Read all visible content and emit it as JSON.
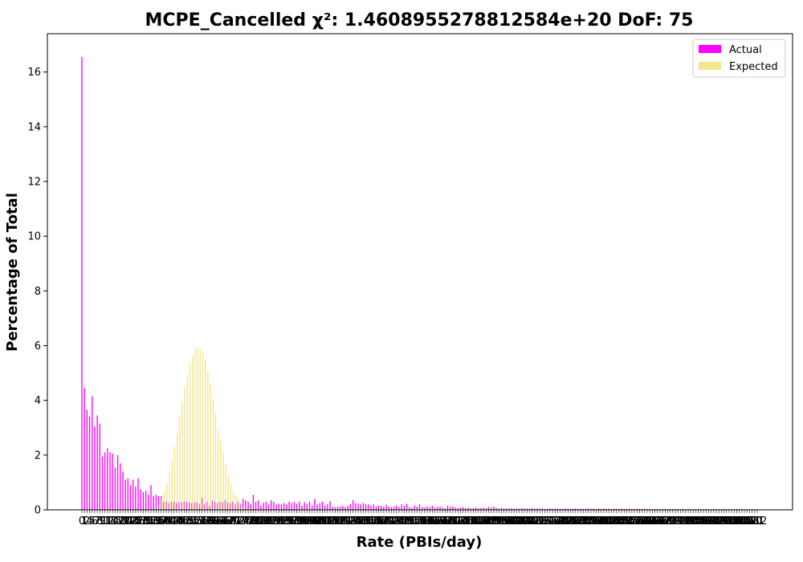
{
  "chart_data": {
    "type": "bar",
    "title": "MCPE_Cancelled χ²: 1.4608955278812584e+20 DoF: 75",
    "xlabel": "Rate (PBIs/day)",
    "ylabel": "Percentage of Total",
    "ylim": [
      0,
      17.4
    ],
    "yticks": [
      0,
      2,
      4,
      6,
      8,
      10,
      12,
      14,
      16
    ],
    "x_first": 0,
    "x_last": 312,
    "first_tick_label": "0",
    "last_tick_label": "312",
    "legend_position": "top-right",
    "grid": false,
    "series": [
      {
        "name": "Actual",
        "color": "#ff00ff",
        "values": [
          16.55,
          4.45,
          3.65,
          3.4,
          4.15,
          3.05,
          3.45,
          3.15,
          1.95,
          2.1,
          2.25,
          2.1,
          2.05,
          1.55,
          2.0,
          1.7,
          1.4,
          1.1,
          1.15,
          0.9,
          1.1,
          0.85,
          1.15,
          0.75,
          0.65,
          0.7,
          0.55,
          0.9,
          0.5,
          0.55,
          0.5,
          0.5,
          0.3,
          0.3,
          0.25,
          0.3,
          0.3,
          0.25,
          0.3,
          0.28,
          0.3,
          0.3,
          0.28,
          0.25,
          0.27,
          0.27,
          0.2,
          0.45,
          0.2,
          0.3,
          0.15,
          0.35,
          0.3,
          0.25,
          0.3,
          0.28,
          0.35,
          0.28,
          0.25,
          0.3,
          0.2,
          0.3,
          0.22,
          0.4,
          0.35,
          0.3,
          0.2,
          0.55,
          0.3,
          0.35,
          0.15,
          0.25,
          0.3,
          0.2,
          0.35,
          0.3,
          0.2,
          0.22,
          0.2,
          0.25,
          0.2,
          0.3,
          0.25,
          0.28,
          0.22,
          0.3,
          0.15,
          0.28,
          0.22,
          0.3,
          0.15,
          0.4,
          0.2,
          0.25,
          0.3,
          0.15,
          0.2,
          0.32,
          0.1,
          0.1,
          0.12,
          0.12,
          0.15,
          0.1,
          0.15,
          0.2,
          0.35,
          0.25,
          0.22,
          0.2,
          0.25,
          0.2,
          0.2,
          0.15,
          0.2,
          0.12,
          0.15,
          0.15,
          0.12,
          0.18,
          0.12,
          0.1,
          0.12,
          0.15,
          0.1,
          0.2,
          0.15,
          0.22,
          0.1,
          0.08,
          0.15,
          0.12,
          0.2,
          0.1,
          0.08,
          0.12,
          0.1,
          0.15,
          0.08,
          0.1,
          0.12,
          0.08,
          0.06,
          0.15,
          0.1,
          0.12,
          0.08,
          0.06,
          0.08,
          0.1,
          0.06,
          0.08,
          0.05,
          0.06,
          0.08,
          0.05,
          0.06,
          0.08,
          0.05,
          0.1,
          0.08,
          0.12,
          0.06,
          0.05,
          0.06,
          0.05,
          0.04,
          0.05,
          0.06,
          0.04,
          0.05,
          0.04,
          0.06,
          0.04,
          0.05,
          0.04,
          0.06,
          0.04,
          0.05,
          0.04,
          0.05,
          0.03,
          0.04,
          0.05,
          0.04,
          0.05,
          0.04,
          0.03,
          0.04,
          0.05,
          0.04,
          0.03,
          0.04,
          0.05,
          0.03,
          0.04,
          0.03,
          0.04,
          0.05,
          0.03,
          0.04,
          0.03,
          0.04,
          0.03,
          0.05,
          0.03,
          0.04,
          0.03,
          0.04,
          0.03,
          0.03,
          0.04,
          0.03,
          0.03,
          0.04,
          0.03,
          0.03,
          0.04,
          0.03,
          0.03,
          0.04,
          0.03,
          0.03,
          0.02,
          0.03,
          0.03,
          0.02,
          0.03,
          0.03,
          0.02,
          0.03,
          0.03,
          0.02,
          0.03,
          0.02,
          0.03,
          0.02,
          0.03,
          0.02,
          0.03,
          0.02,
          0.03,
          0.02,
          0.02,
          0.03,
          0.02,
          0.02,
          0.03,
          0.02,
          0.02,
          0.02,
          0.03,
          0.02,
          0.02,
          0.02,
          0.02,
          0.03,
          0.02,
          0.02,
          0.02,
          0.02,
          0.02,
          0.02,
          0.02,
          0.02
        ]
      },
      {
        "name": "Expected",
        "color": "#f0e68c",
        "values": [
          0,
          0,
          0,
          0,
          0,
          0,
          0,
          0,
          0,
          0,
          0,
          0,
          0,
          0,
          0,
          0,
          0,
          0,
          0,
          0,
          0,
          0,
          0,
          0,
          0,
          0,
          0,
          0,
          0,
          0.05,
          0.2,
          0.45,
          0.7,
          1.0,
          1.4,
          1.85,
          2.3,
          2.8,
          3.4,
          3.95,
          4.5,
          4.95,
          5.35,
          5.65,
          5.85,
          5.95,
          5.9,
          5.75,
          5.5,
          5.05,
          4.6,
          4.05,
          3.55,
          2.95,
          2.5,
          2.05,
          1.65,
          1.25,
          0.95,
          0.7,
          0.5,
          0.35,
          0.22,
          0.13,
          0.07,
          0.03,
          0.01,
          0,
          0,
          0,
          0,
          0,
          0,
          0,
          0,
          0,
          0,
          0,
          0,
          0,
          0,
          0,
          0,
          0,
          0,
          0,
          0,
          0,
          0,
          0,
          0,
          0,
          0,
          0,
          0,
          0,
          0,
          0,
          0,
          0,
          0,
          0,
          0,
          0,
          0,
          0,
          0,
          0,
          0,
          0,
          0,
          0,
          0,
          0,
          0,
          0,
          0,
          0,
          0,
          0,
          0,
          0,
          0,
          0,
          0,
          0,
          0,
          0,
          0,
          0,
          0,
          0,
          0,
          0,
          0,
          0,
          0,
          0,
          0,
          0,
          0,
          0,
          0,
          0,
          0,
          0,
          0,
          0,
          0,
          0,
          0,
          0,
          0,
          0,
          0,
          0,
          0,
          0,
          0,
          0,
          0,
          0,
          0,
          0,
          0,
          0,
          0,
          0,
          0,
          0,
          0,
          0,
          0,
          0,
          0,
          0,
          0,
          0,
          0,
          0,
          0,
          0,
          0,
          0,
          0,
          0,
          0,
          0,
          0,
          0,
          0,
          0,
          0,
          0,
          0,
          0,
          0,
          0,
          0,
          0,
          0,
          0,
          0,
          0,
          0,
          0,
          0,
          0,
          0,
          0,
          0,
          0,
          0,
          0,
          0,
          0,
          0,
          0,
          0,
          0,
          0,
          0,
          0,
          0,
          0,
          0,
          0,
          0,
          0,
          0,
          0,
          0,
          0,
          0,
          0,
          0,
          0,
          0,
          0,
          0,
          0,
          0,
          0,
          0,
          0,
          0,
          0,
          0,
          0,
          0,
          0,
          0,
          0,
          0,
          0,
          0,
          0,
          0,
          0,
          0,
          0,
          0,
          0,
          0,
          0,
          0,
          0,
          0,
          0,
          0,
          0
        ]
      }
    ]
  }
}
